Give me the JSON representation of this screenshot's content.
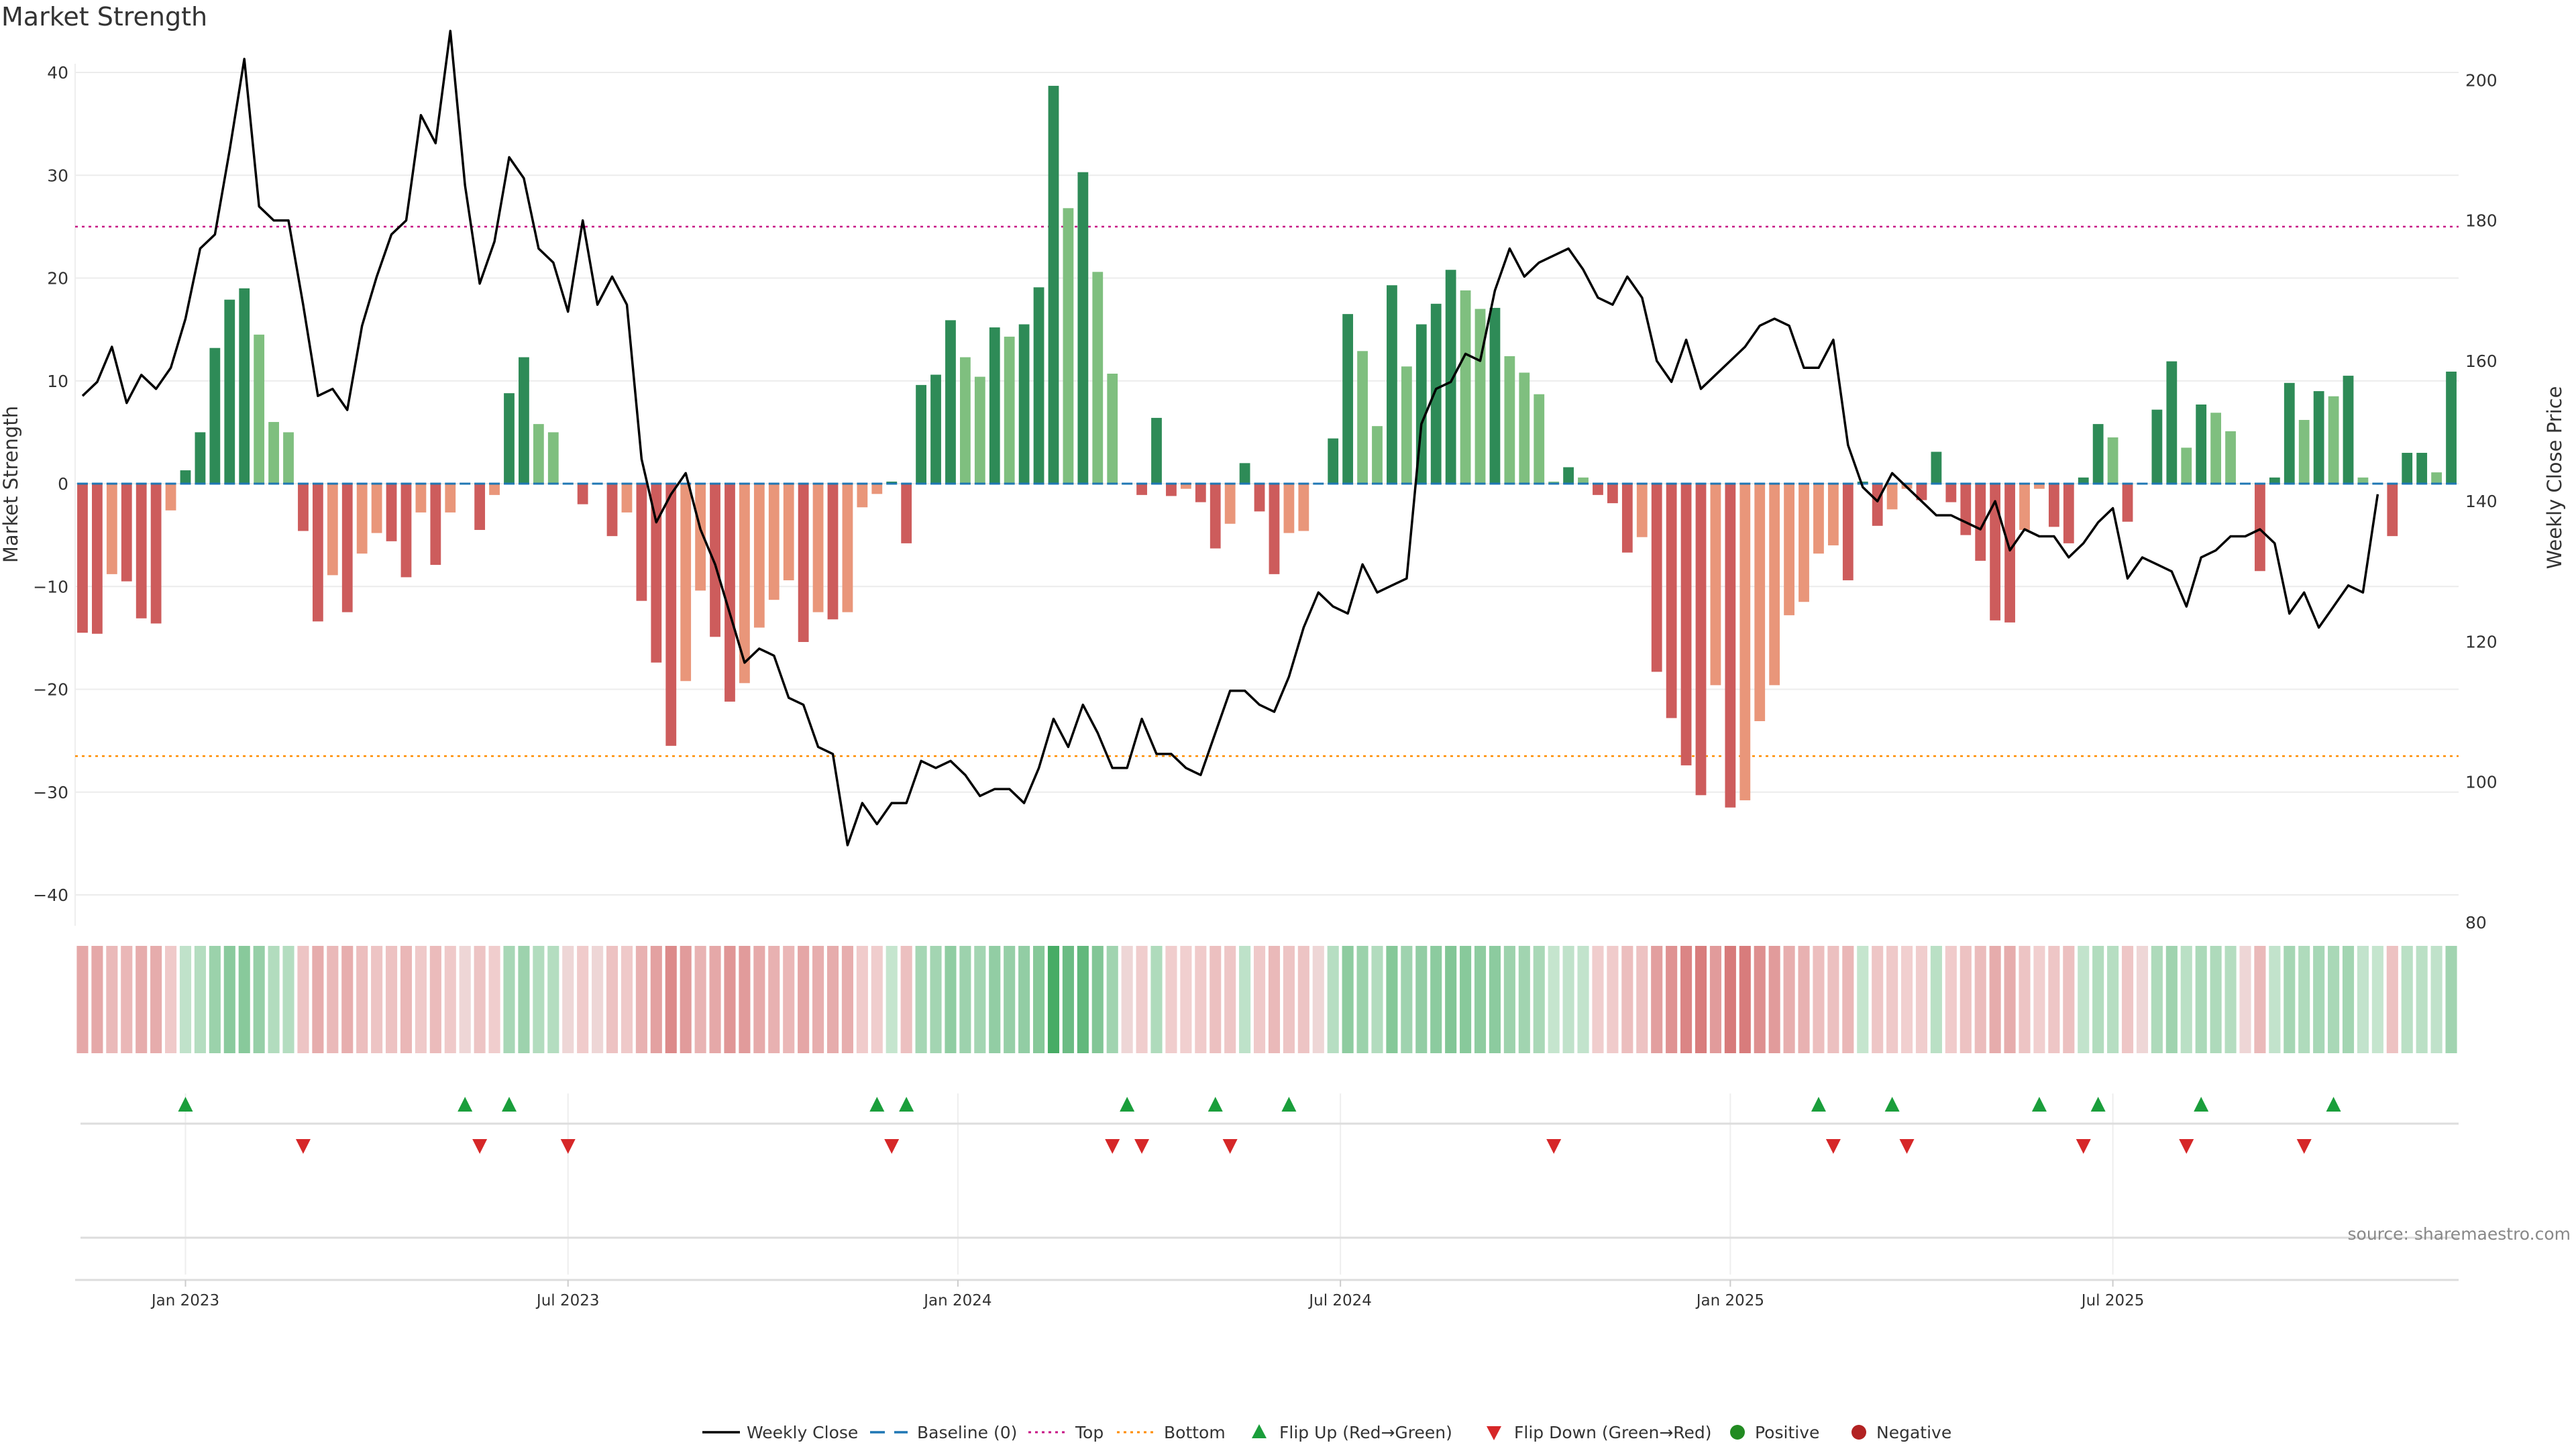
{
  "chart_data": {
    "type": "bar",
    "title": "Market Strength",
    "ylabel": "Market Strength",
    "y2label": "Weekly Close Price",
    "ylim": [
      -40,
      40
    ],
    "y2lim": [
      80,
      205
    ],
    "yticks": [
      "40",
      "30",
      "20",
      "10",
      "0",
      "−10",
      "−20",
      "−30",
      "−40"
    ],
    "y2ticks": [
      "200",
      "180",
      "160",
      "140",
      "120",
      "100",
      "80"
    ],
    "top_threshold": 25,
    "bottom_threshold": -26.5,
    "x_ticks": [
      {
        "label": "Jan 2023",
        "week": 7.5
      },
      {
        "label": "Jul 2023",
        "week": 33.5
      },
      {
        "label": "Jan 2024",
        "week": 60
      },
      {
        "label": "Jul 2024",
        "week": 86
      },
      {
        "label": "Jan 2025",
        "week": 112.5
      },
      {
        "label": "Jul 2025",
        "week": 138.5
      }
    ],
    "strength": [
      -14.5,
      -14.6,
      -8.8,
      -9.5,
      -13.1,
      -13.6,
      -2.6,
      1.3,
      5,
      13.2,
      17.9,
      19,
      14.5,
      6,
      5,
      -4.6,
      -13.4,
      -8.9,
      -12.5,
      -6.8,
      -4.8,
      -5.6,
      -9.1,
      -2.8,
      -7.9,
      -2.8,
      0,
      -4.5,
      -1.1,
      8.8,
      12.3,
      5.8,
      5,
      0,
      -2,
      0,
      -5.1,
      -2.8,
      -11.4,
      -17.4,
      -25.5,
      -19.2,
      -10.4,
      -14.9,
      -21.2,
      -19.4,
      -14,
      -11.3,
      -9.4,
      -15.4,
      -12.5,
      -13.2,
      -12.5,
      -2.3,
      -1,
      0.2,
      -5.8,
      9.6,
      10.6,
      15.9,
      12.3,
      10.4,
      15.2,
      14.3,
      15.5,
      19.1,
      38.7,
      26.8,
      30.3,
      20.6,
      10.7,
      0,
      -1.1,
      6.4,
      -1.2,
      -0.5,
      -1.8,
      -6.3,
      -3.9,
      2,
      -2.7,
      -8.8,
      -4.8,
      -4.6,
      0,
      4.4,
      16.5,
      12.9,
      5.6,
      19.3,
      11.4,
      15.5,
      17.5,
      20.8,
      18.8,
      17,
      17.1,
      12.4,
      10.8,
      8.7,
      0.2,
      1.6,
      0.6,
      -1.1,
      -1.9,
      -6.7,
      -5.2,
      -18.3,
      -22.8,
      -27.4,
      -30.3,
      -19.6,
      -31.5,
      -30.8,
      -23.1,
      -19.6,
      -12.8,
      -11.5,
      -6.8,
      -6,
      -9.4,
      0.2,
      -4.1,
      -2.5,
      -0.5,
      -1.6,
      3.1,
      -1.8,
      -5,
      -7.5,
      -13.3,
      -13.5,
      -4.5,
      -0.5,
      -4.2,
      -5.8,
      0.6,
      5.8,
      4.5,
      -3.7,
      0,
      7.2,
      11.9,
      3.5,
      7.7,
      6.9,
      5.1,
      0,
      -8.5,
      0.6,
      9.8,
      6.2,
      9,
      8.5,
      10.5,
      0.6,
      0.1,
      -5.1,
      3,
      3,
      1.1,
      10.9
    ],
    "weekly_close": [
      155,
      157,
      162,
      154,
      158,
      156,
      159,
      166,
      176,
      178,
      190,
      203,
      182,
      180,
      180,
      168,
      155,
      156,
      153,
      165,
      172,
      178,
      180,
      195,
      191,
      207,
      185,
      171,
      177,
      189,
      186,
      176,
      174,
      167,
      180,
      168,
      172,
      168,
      146,
      137,
      141,
      144,
      136,
      131,
      124,
      117,
      119,
      118,
      112,
      111,
      105,
      104,
      91,
      97,
      94,
      97,
      97,
      103,
      102,
      103,
      101,
      98,
      99,
      99,
      97,
      102,
      109,
      105,
      111,
      107,
      102,
      102,
      109,
      104,
      104,
      102,
      101,
      107,
      113,
      113,
      111,
      110,
      115,
      122,
      127,
      125,
      124,
      131,
      127,
      128,
      129,
      151,
      156,
      157,
      161,
      160,
      170,
      176,
      172,
      174,
      175,
      176,
      173,
      169,
      168,
      172,
      169,
      160,
      157,
      163,
      156,
      158,
      160,
      162,
      165,
      166,
      165,
      159,
      159,
      163,
      148,
      142,
      140,
      144,
      142,
      140,
      138,
      138,
      137,
      136,
      140,
      133,
      136,
      135,
      135,
      132,
      134,
      137,
      139,
      129,
      132,
      131,
      130,
      125,
      132,
      133,
      135,
      135,
      136,
      134,
      124,
      127,
      122,
      125,
      128,
      127,
      141
    ],
    "flips_up": [
      7,
      26,
      29,
      54,
      56,
      71,
      77,
      82,
      118,
      123,
      133,
      137,
      144,
      153
    ],
    "flips_down": [
      15,
      27,
      33,
      55,
      70,
      72,
      78,
      100,
      119,
      124,
      136,
      143,
      151
    ]
  },
  "legend": [
    {
      "label": "Weekly Close",
      "marker": "line"
    },
    {
      "label": "Baseline (0)",
      "marker": "dashed-line"
    },
    {
      "label": "Top",
      "marker": "dotted-line-pink"
    },
    {
      "label": "Bottom",
      "marker": "dotted-line-orange"
    },
    {
      "label": "Flip Up (Red→Green)",
      "marker": "triangle-up"
    },
    {
      "label": "Flip Down (Green→Red)",
      "marker": "triangle-down"
    },
    {
      "label": "Positive",
      "marker": "circle-green"
    },
    {
      "label": "Negative",
      "marker": "circle-red"
    }
  ],
  "source_text": "source: sharemaestro.com",
  "colors": {
    "pos_strong": "#2e8b57",
    "pos_light": "#7fbf7f",
    "neg_strong": "#cd5c5c",
    "neg_light": "#e9967a",
    "top_line": "#c71585",
    "bottom_line": "#ff8c00",
    "baseline": "#1f77b4",
    "price_line": "#000000",
    "flip_up": "#1a9e3b",
    "flip_down": "#d62728",
    "positive_dot": "#228b22",
    "negative_dot": "#b22222"
  }
}
